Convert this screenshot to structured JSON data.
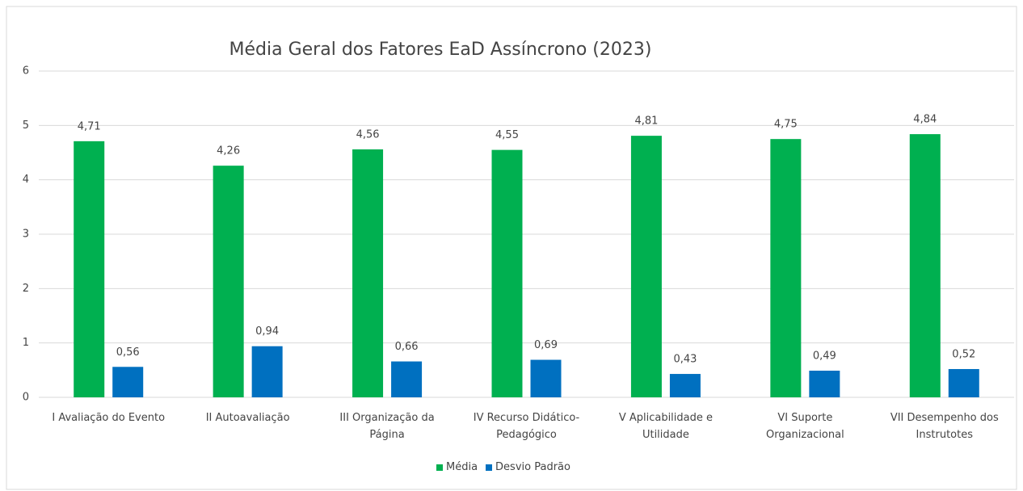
{
  "chart_data": {
    "type": "bar",
    "title": "Média Geral dos Fatores EaD Assíncrono (2023)",
    "categories": [
      "I Avaliação do Evento",
      "II Autoavaliação",
      "III Organização da Página",
      "IV Recurso Didático-Pedagógico",
      "V Aplicabilidade e Utilidade",
      "VI Suporte Organizacional",
      "VII Desempenho dos Instrutotes"
    ],
    "series": [
      {
        "name": "Média",
        "color": "#00b050",
        "values": [
          4.71,
          4.26,
          4.56,
          4.55,
          4.81,
          4.75,
          4.84
        ],
        "value_labels": [
          "4,71",
          "4,26",
          "4,56",
          "4,55",
          "4,81",
          "4,75",
          "4,84"
        ]
      },
      {
        "name": "Desvio Padrão",
        "color": "#0070c0",
        "values": [
          0.56,
          0.94,
          0.66,
          0.69,
          0.43,
          0.49,
          0.52
        ],
        "value_labels": [
          "0,56",
          "0,94",
          "0,66",
          "0,69",
          "0,43",
          "0,49",
          "0,52"
        ]
      }
    ],
    "ylim": [
      0,
      6
    ],
    "yticks": [
      0,
      1,
      2,
      3,
      4,
      5,
      6
    ],
    "grid": true,
    "legend": "bottom"
  }
}
